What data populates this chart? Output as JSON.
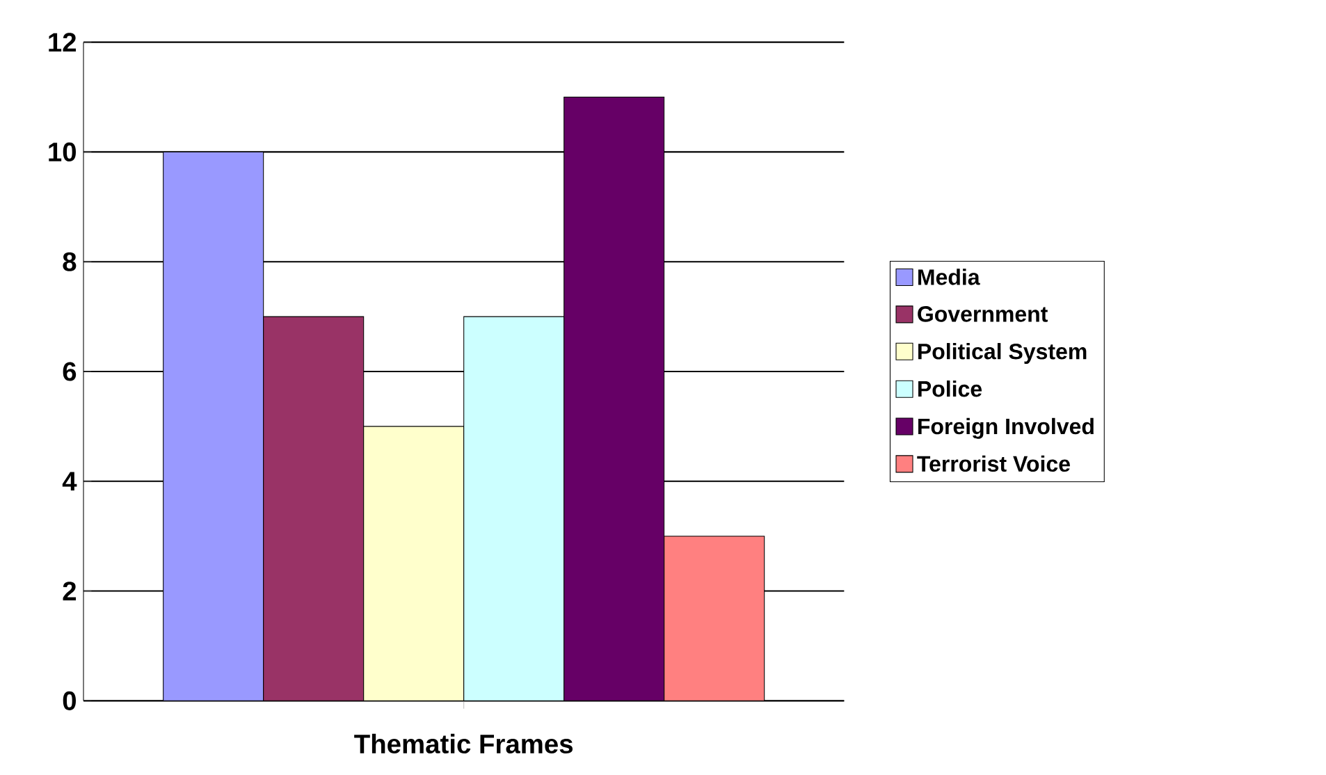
{
  "chart_data": {
    "type": "bar",
    "categories": [
      "Thematic Frames"
    ],
    "series": [
      {
        "name": "Media",
        "color": "#9999ff",
        "values": [
          10
        ]
      },
      {
        "name": "Government",
        "color": "#993366",
        "values": [
          7
        ]
      },
      {
        "name": "Political System",
        "color": "#ffffcc",
        "values": [
          5
        ]
      },
      {
        "name": "Police",
        "color": "#ccffff",
        "values": [
          7
        ]
      },
      {
        "name": "Foreign Involved",
        "color": "#660066",
        "values": [
          11
        ]
      },
      {
        "name": "Terrorist Voice",
        "color": "#ff8080",
        "values": [
          3
        ]
      }
    ],
    "ylim": [
      0,
      12
    ],
    "yticks": [
      0,
      2,
      4,
      6,
      8,
      10,
      12
    ],
    "grid": "y",
    "legend": "right"
  }
}
